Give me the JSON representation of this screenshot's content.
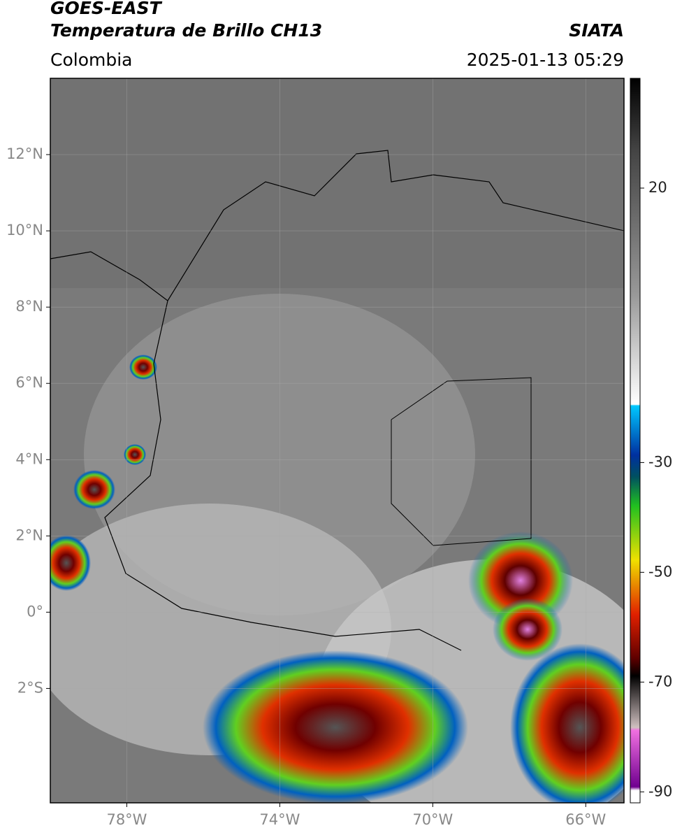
{
  "header": {
    "title": "GOES-EAST",
    "subtitle": "Temperatura de Brillo CH13",
    "source": "SIATA",
    "region": "Colombia",
    "timestamp": "2025-01-13 05:29"
  },
  "map": {
    "xlim": [
      -80,
      -65
    ],
    "ylim": [
      -5,
      14
    ],
    "xticks": [
      {
        "value": -78,
        "label": "78°W"
      },
      {
        "value": -74,
        "label": "74°W"
      },
      {
        "value": -70,
        "label": "70°W"
      },
      {
        "value": -66,
        "label": "66°W"
      }
    ],
    "yticks": [
      {
        "value": 12,
        "label": "12°N"
      },
      {
        "value": 10,
        "label": "10°N"
      },
      {
        "value": 8,
        "label": "8°N"
      },
      {
        "value": 6,
        "label": "6°N"
      },
      {
        "value": 4,
        "label": "4°N"
      },
      {
        "value": 2,
        "label": "2°N"
      },
      {
        "value": 0,
        "label": "0°"
      },
      {
        "value": -2,
        "label": "2°S"
      }
    ],
    "grid": true
  },
  "colorbar": {
    "lim": [
      -92,
      40
    ],
    "ticks": [
      20,
      -30,
      -50,
      -70,
      -90
    ]
  }
}
